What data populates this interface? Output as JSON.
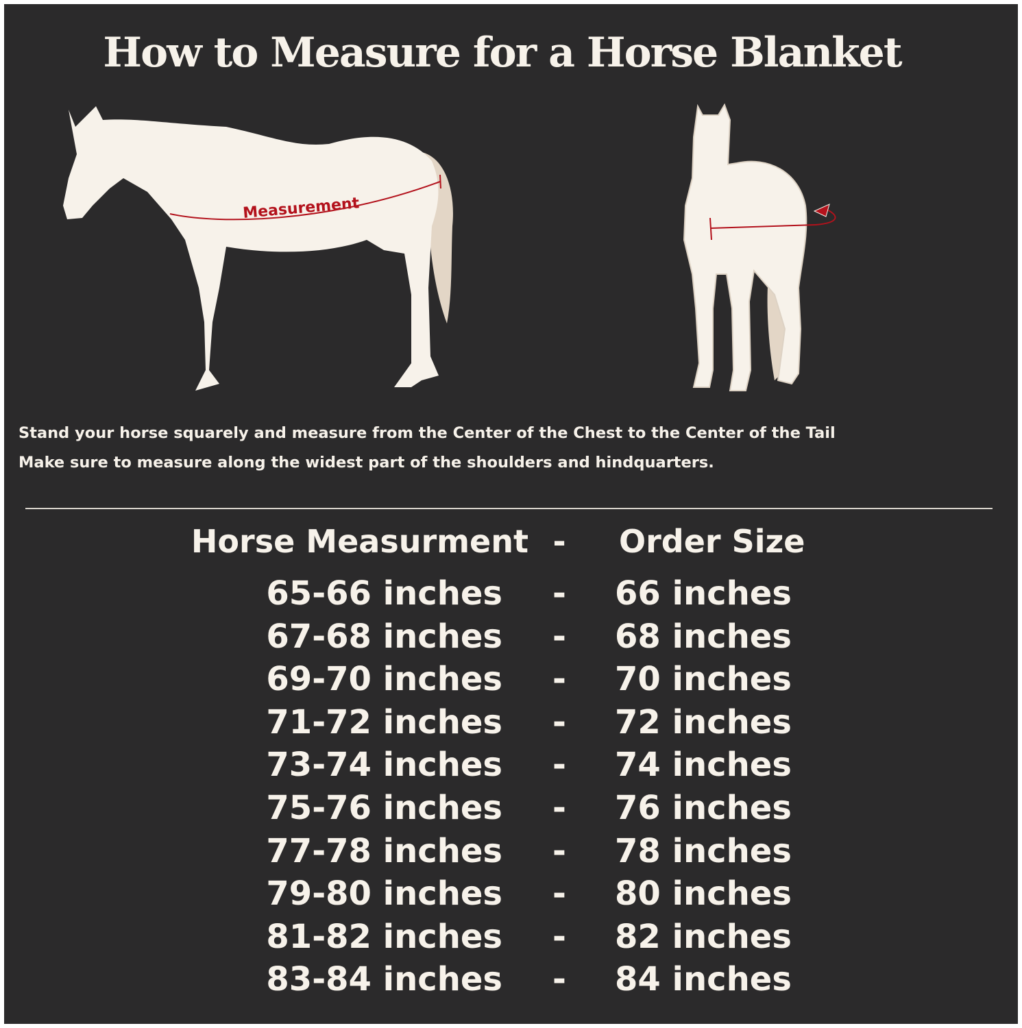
{
  "title": "How to Measure for a Horse Blanket",
  "illustrations": {
    "side_view_label": "Measurement",
    "accent_color": "#b3121c",
    "horse_color": "#f7f2ea",
    "tail_color": "#e3d6c6"
  },
  "instructions": [
    "Stand your horse squarely and measure from the Center of the Chest to the Center of the Tail",
    "Make sure to measure along the widest part of the shoulders and hindquarters."
  ],
  "table": {
    "header": {
      "measurement": "Horse Measurment",
      "separator": "-",
      "size": "Order Size"
    },
    "rows": [
      {
        "measurement": "65-66 inches",
        "separator": "-",
        "size": "66 inches"
      },
      {
        "measurement": "67-68 inches",
        "separator": "-",
        "size": "68 inches"
      },
      {
        "measurement": "69-70 inches",
        "separator": "-",
        "size": "70 inches"
      },
      {
        "measurement": "71-72 inches",
        "separator": "-",
        "size": "72 inches"
      },
      {
        "measurement": "73-74 inches",
        "separator": "-",
        "size": "74 inches"
      },
      {
        "measurement": "75-76 inches",
        "separator": "-",
        "size": "76 inches"
      },
      {
        "measurement": "77-78 inches",
        "separator": "-",
        "size": "78 inches"
      },
      {
        "measurement": "79-80 inches",
        "separator": "-",
        "size": "80 inches"
      },
      {
        "measurement": "81-82 inches",
        "separator": "-",
        "size": "82 inches"
      },
      {
        "measurement": "83-84 inches",
        "separator": "-",
        "size": "84 inches"
      }
    ]
  }
}
